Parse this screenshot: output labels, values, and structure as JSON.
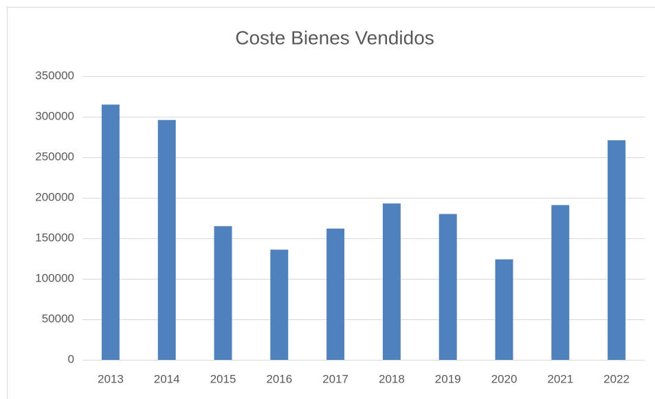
{
  "chart_data": {
    "type": "bar",
    "title": "Coste Bienes Vendidos",
    "categories": [
      "2013",
      "2014",
      "2015",
      "2016",
      "2017",
      "2018",
      "2019",
      "2020",
      "2021",
      "2022"
    ],
    "values": [
      315000,
      296000,
      165000,
      136000,
      162000,
      193000,
      180000,
      124000,
      191000,
      271000
    ],
    "color": "#4f81bd",
    "ylim": [
      0,
      350000
    ],
    "yticks": [
      0,
      50000,
      100000,
      150000,
      200000,
      250000,
      300000,
      350000
    ],
    "grid": true
  }
}
